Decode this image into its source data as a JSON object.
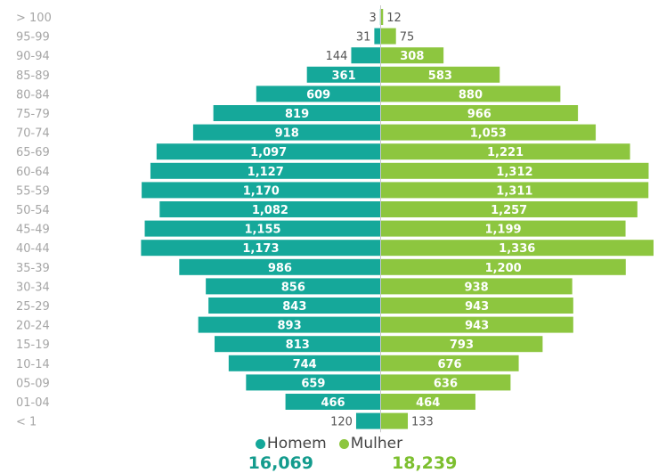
{
  "chart_data": {
    "type": "bar",
    "orientation": "horizontal-pyramid",
    "categories": [
      "> 100",
      "95-99",
      "90-94",
      "85-89",
      "80-84",
      "75-79",
      "70-74",
      "65-69",
      "60-64",
      "55-59",
      "50-54",
      "45-49",
      "40-44",
      "35-39",
      "30-34",
      "25-29",
      "20-24",
      "15-19",
      "10-14",
      "05-09",
      "01-04",
      "< 1"
    ],
    "series": [
      {
        "name": "Homem",
        "color": "#15a89a",
        "values": [
          3,
          31,
          144,
          361,
          609,
          819,
          918,
          1097,
          1127,
          1170,
          1082,
          1155,
          1173,
          986,
          856,
          843,
          893,
          813,
          744,
          659,
          466,
          120
        ],
        "labels": [
          "3",
          "31",
          "144",
          "361",
          "609",
          "819",
          "918",
          "1,097",
          "1,127",
          "1,170",
          "1,082",
          "1,155",
          "1,173",
          "986",
          "856",
          "843",
          "893",
          "813",
          "744",
          "659",
          "466",
          "120"
        ]
      },
      {
        "name": "Mulher",
        "color": "#8dc63f",
        "values": [
          12,
          75,
          308,
          583,
          880,
          966,
          1053,
          1221,
          1312,
          1311,
          1257,
          1199,
          1336,
          1200,
          938,
          943,
          943,
          793,
          676,
          636,
          464,
          133
        ],
        "labels": [
          "12",
          "75",
          "308",
          "583",
          "880",
          "966",
          "1,053",
          "1,221",
          "1,312",
          "1,311",
          "1,257",
          "1,199",
          "1,336",
          "1,200",
          "938",
          "943",
          "943",
          "793",
          "676",
          "636",
          "464",
          "133"
        ]
      }
    ],
    "legend": {
      "position": "bottom"
    },
    "totals": {
      "homem": "16,069",
      "mulher": "18,239"
    },
    "xlabel": "",
    "ylabel": ""
  }
}
